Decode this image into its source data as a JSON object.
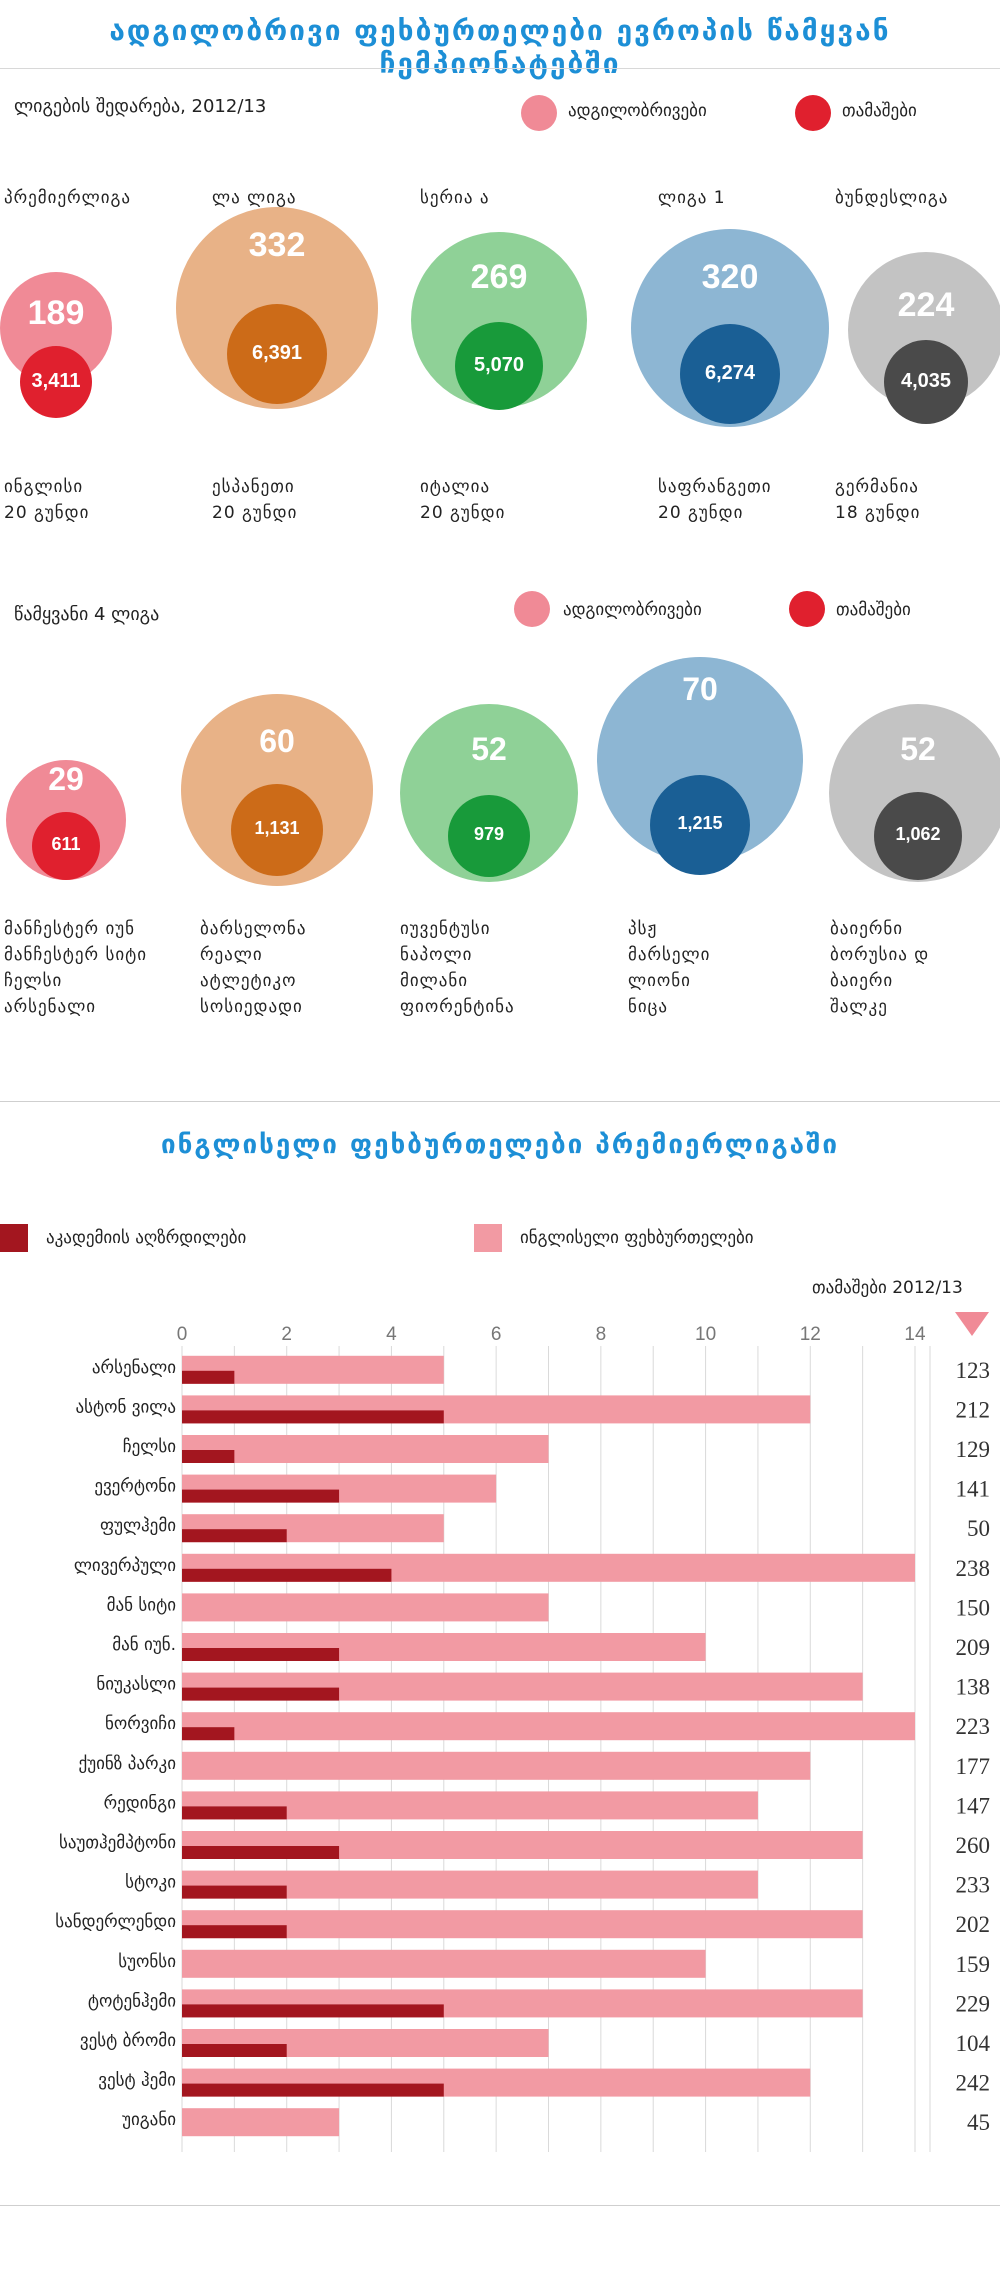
{
  "title": "ადგილობრივი ფეხბურთელები ევროპის წამყვან ჩემპიონატებში",
  "section1": {
    "subtitle": "ლიგების შედარება, 2012/13",
    "legend_local": "ადგილობრივები",
    "legend_games": "თამაშები",
    "leagues": [
      {
        "name": "პრემიერლიგა",
        "local": "189",
        "games": "3,411",
        "country": "ინგლისი",
        "teams": "20 გუნდი",
        "outer": "#f08a96",
        "inner": "#e0202e"
      },
      {
        "name": "ლა ლიგა",
        "local": "332",
        "games": "6,391",
        "country": "ესპანეთი",
        "teams": "20 გუნდი",
        "outer": "#e8b287",
        "inner": "#cc6b18"
      },
      {
        "name": "სერია ა",
        "local": "269",
        "games": "5,070",
        "country": "იტალია",
        "teams": "20 გუნდი",
        "outer": "#8fd197",
        "inner": "#189a3a"
      },
      {
        "name": "ლიგა 1",
        "local": "320",
        "games": "6,274",
        "country": "საფრანგეთი",
        "teams": "20 გუნდი",
        "outer": "#8db6d3",
        "inner": "#1a5f95"
      },
      {
        "name": "ბუნდესლიგა",
        "local": "224",
        "games": "4,035",
        "country": "გერმანია",
        "teams": "18 გუნდი",
        "outer": "#c3c3c3",
        "inner": "#4a4a4a"
      }
    ]
  },
  "section2": {
    "subtitle": "წამყვანი 4 ლიგა",
    "legend_local": "ადგილობრივები",
    "legend_games": "თამაშები",
    "leagues": [
      {
        "local": "29",
        "games": "611",
        "clubs": [
          "მანჩესტერ იუნ",
          "მანჩესტერ სიტი",
          "ჩელსი",
          "არსენალი"
        ]
      },
      {
        "local": "60",
        "games": "1,131",
        "clubs": [
          "ბარსელონა",
          "რეალი",
          "ატლეტიკო",
          "სოსიედადი"
        ]
      },
      {
        "local": "52",
        "games": "979",
        "clubs": [
          "იუვენტუსი",
          "ნაპოლი",
          "მილანი",
          "ფიორენტინა"
        ]
      },
      {
        "local": "70",
        "games": "1,215",
        "clubs": [
          "პსჟ",
          "მარსელი",
          "ლიონი",
          "ნიცა"
        ]
      },
      {
        "local": "52",
        "games": "1,062",
        "clubs": [
          "ბაიერნი",
          "ბორუსია დ",
          "ბაიერი",
          "შალკე"
        ]
      }
    ]
  },
  "chart_title": "ინგლისელი ფეხბურთელები პრემიერლიგაში",
  "chart_legend": {
    "academy": "აკადემიის აღზრდილები",
    "english": "ინგლისელი ფეხბურთელები"
  },
  "games_header": "თამაშები 2012/13",
  "chart_data": {
    "type": "bar",
    "orientation": "horizontal",
    "xlim": [
      0,
      14
    ],
    "xticks": [
      "0",
      "2",
      "4",
      "6",
      "8",
      "10",
      "12",
      "14"
    ],
    "categories": [
      "არსენალი",
      "ასტონ ვილა",
      "ჩელსი",
      "ევერტონი",
      "ფულჰემი",
      "ლივერპული",
      "მან სიტი",
      "მან იუნ.",
      "ნიუკასლი",
      "ნორვიჩი",
      "ქუინზ პარკი",
      "რედინგი",
      "საუთჰემპტონი",
      "სტოკი",
      "სანდერლენდი",
      "სუონსი",
      "ტოტენჰემი",
      "ვესტ ბრომი",
      "ვესტ ჰემი",
      "უიგანი"
    ],
    "series": [
      {
        "name": "ინგლისელი ფეხბურთელები",
        "color": "#f29aa3",
        "values": [
          5,
          12,
          7,
          6,
          5,
          14,
          7,
          10,
          13,
          14,
          12,
          11,
          13,
          11,
          13,
          10,
          13,
          7,
          12,
          3
        ]
      },
      {
        "name": "აკადემიის აღზრდილები",
        "color": "#a3161f",
        "values": [
          1,
          5,
          1,
          3,
          2,
          4,
          0,
          3,
          3,
          1,
          0,
          2,
          3,
          2,
          2,
          0,
          5,
          2,
          5,
          0
        ]
      }
    ],
    "games": [
      "123",
      "212",
      "129",
      "141",
      "50",
      "238",
      "150",
      "209",
      "138",
      "223",
      "177",
      "147",
      "260",
      "233",
      "202",
      "159",
      "229",
      "104",
      "242",
      "45"
    ]
  }
}
